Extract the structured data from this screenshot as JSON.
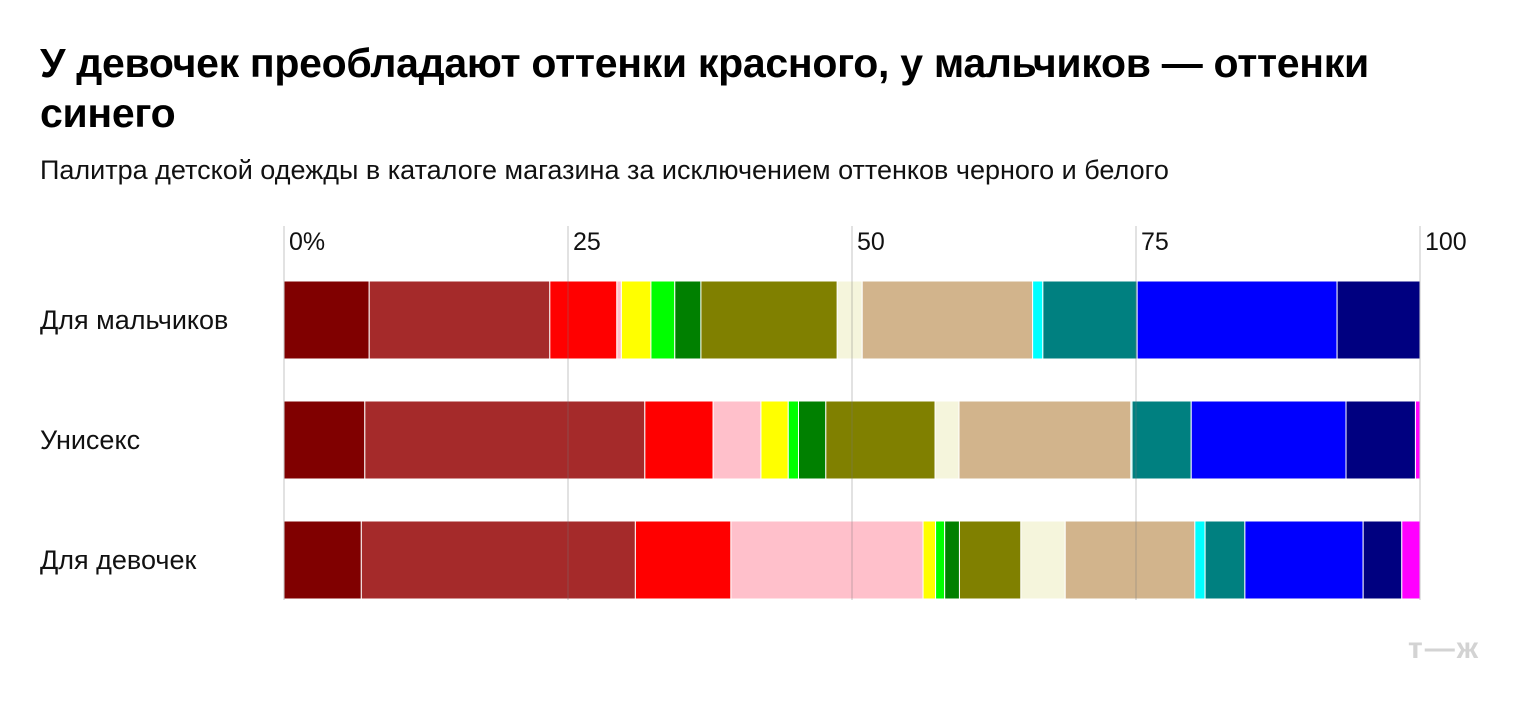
{
  "title": "У девочек преобладают оттенки красного, у мальчиков — оттенки синего",
  "subtitle": "Палитра детской одежды в каталоге магазина за исключением оттенков черного и белого",
  "logo": "т—ж",
  "chart_data": {
    "type": "bar",
    "orientation": "horizontal",
    "stacked": true,
    "xlim": [
      0,
      100
    ],
    "ticks": [
      0,
      25,
      50,
      75,
      100
    ],
    "tick_labels": [
      "0%",
      "25",
      "50",
      "75",
      "100"
    ],
    "grid": true,
    "categories": [
      "Для мальчиков",
      "Унисекс",
      "Для девочек"
    ],
    "series": [
      {
        "color": "#800000",
        "values": [
          7.5,
          7.1,
          6.8
        ]
      },
      {
        "color": "#a52a2a",
        "values": [
          15.9,
          24.6,
          24.1
        ]
      },
      {
        "color": "#ff0000",
        "values": [
          5.9,
          6.0,
          8.4
        ]
      },
      {
        "color": "#ffc0cb",
        "values": [
          0.4,
          4.2,
          16.9
        ]
      },
      {
        "color": "#ffff00",
        "values": [
          2.6,
          2.4,
          1.1
        ]
      },
      {
        "color": "#00ff00",
        "values": [
          2.1,
          0.9,
          0.8
        ]
      },
      {
        "color": "#008000",
        "values": [
          2.3,
          2.4,
          1.3
        ]
      },
      {
        "color": "#808000",
        "values": [
          12.0,
          9.6,
          5.4
        ]
      },
      {
        "color": "#f5f5dc",
        "values": [
          2.2,
          2.1,
          3.9
        ]
      },
      {
        "color": "#d2b48c",
        "values": [
          15.0,
          15.1,
          11.4
        ]
      },
      {
        "color": "#00ffff",
        "values": [
          0.9,
          0.1,
          0.9
        ]
      },
      {
        "color": "#008080",
        "values": [
          8.3,
          5.2,
          3.5
        ]
      },
      {
        "color": "#0000ff",
        "values": [
          17.6,
          13.6,
          10.4
        ]
      },
      {
        "color": "#000080",
        "values": [
          7.3,
          6.1,
          3.4
        ]
      },
      {
        "color": "#ff00ff",
        "values": [
          0.0,
          0.4,
          1.6
        ]
      }
    ]
  }
}
